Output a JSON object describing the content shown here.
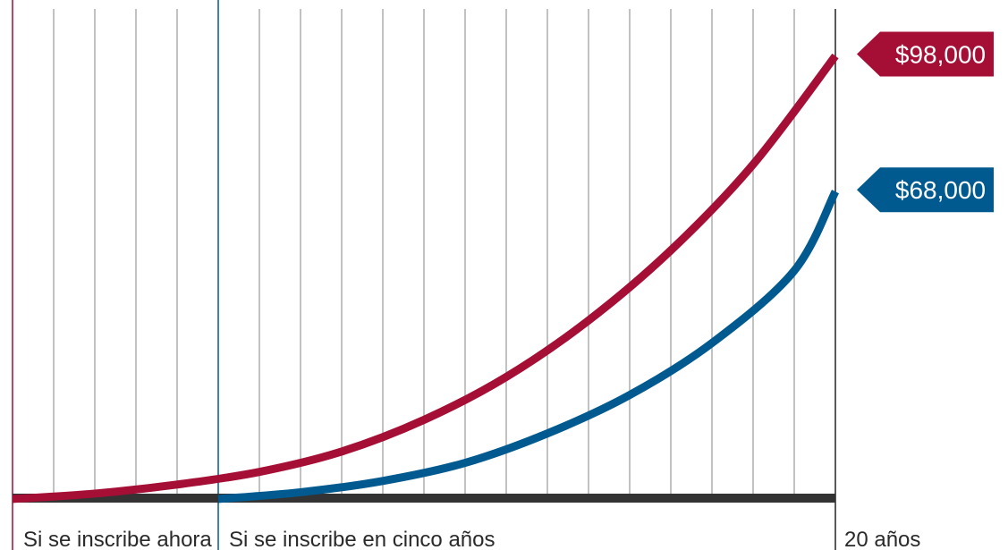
{
  "chart_data": {
    "type": "line",
    "x_unit": "years",
    "xlim": [
      0,
      20
    ],
    "ylim": [
      0,
      108000
    ],
    "grid": true,
    "colors": {
      "now": "#a50f35",
      "five_years": "#005a8f",
      "baseline": "#333333",
      "grid": "#9a9a9a",
      "end_line": "#222222"
    },
    "series": [
      {
        "key": "now",
        "start_year": 0,
        "points": [
          [
            0,
            0
          ],
          [
            2,
            1200
          ],
          [
            4,
            3200
          ],
          [
            6,
            6000
          ],
          [
            8,
            10500
          ],
          [
            10,
            17500
          ],
          [
            12,
            27000
          ],
          [
            14,
            39500
          ],
          [
            16,
            55000
          ],
          [
            18,
            74000
          ],
          [
            20,
            98000
          ]
        ]
      },
      {
        "key": "five_years",
        "start_year": 5,
        "points": [
          [
            5,
            0
          ],
          [
            7,
            1500
          ],
          [
            9,
            4000
          ],
          [
            11,
            8000
          ],
          [
            13,
            14500
          ],
          [
            15,
            23000
          ],
          [
            17,
            34500
          ],
          [
            19,
            50500
          ],
          [
            20,
            68000
          ]
        ]
      }
    ],
    "callouts": [
      {
        "series": "now",
        "label": "$98,000"
      },
      {
        "series": "five_years",
        "label": "$68,000"
      }
    ],
    "markers": [
      {
        "year": 0,
        "label": "Si se inscribe ahora",
        "series": "now"
      },
      {
        "year": 5,
        "label": "Si se inscribe en cinco años",
        "series": "five_years"
      }
    ],
    "end_label": "20 años"
  }
}
